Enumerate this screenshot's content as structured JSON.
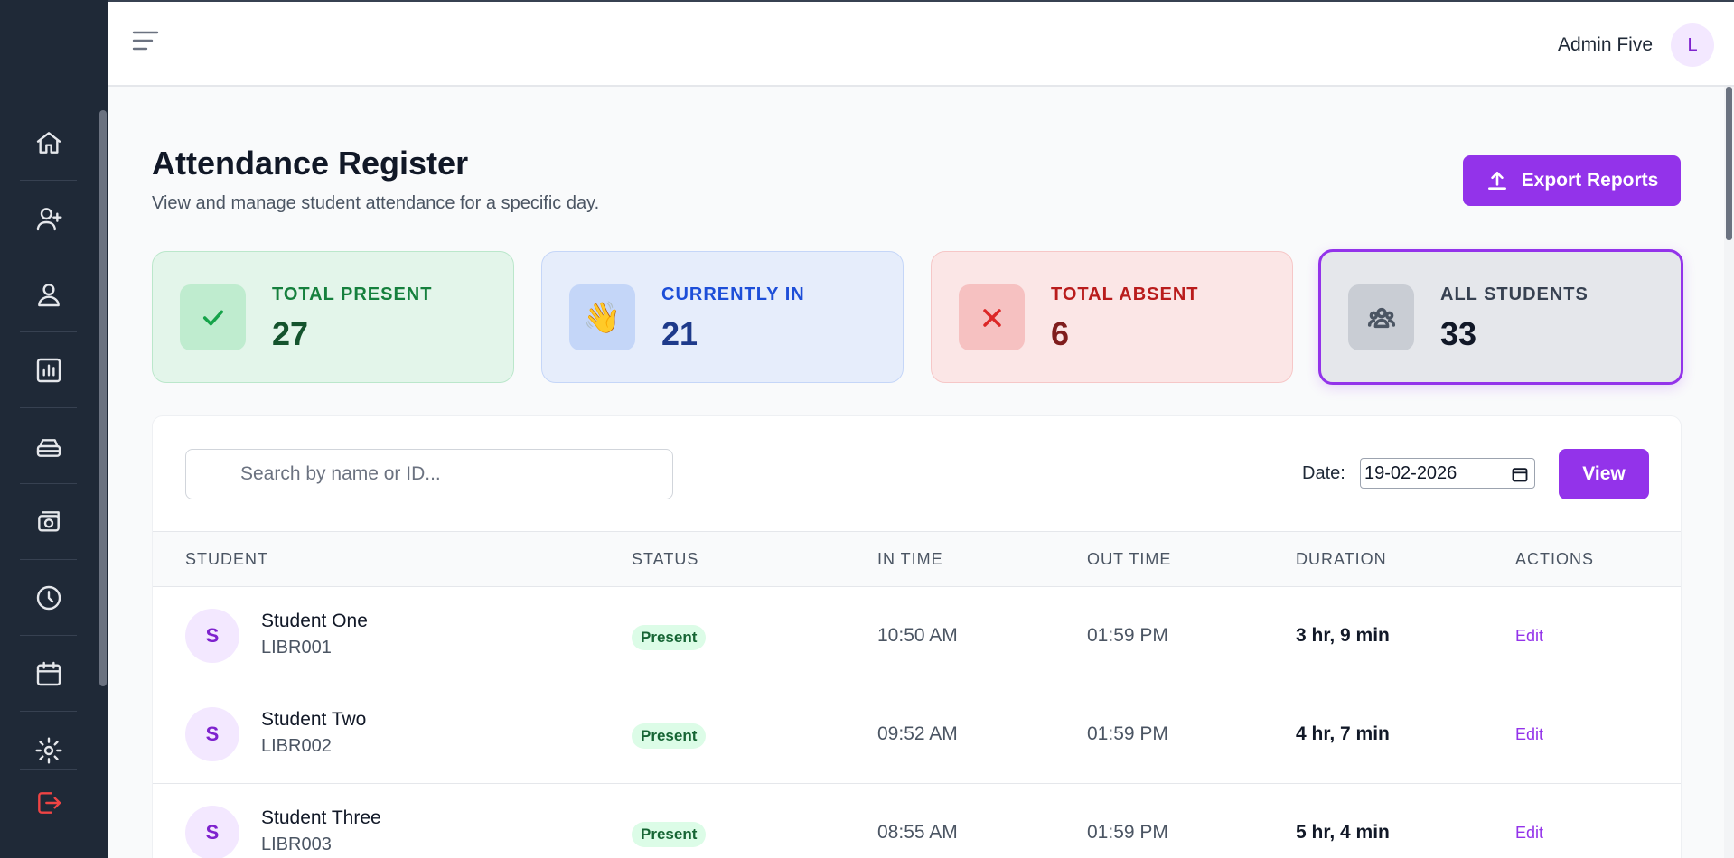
{
  "topbar": {
    "admin_name": "Admin Five",
    "avatar_initial": "L"
  },
  "sidebar": {
    "items": [
      {
        "name": "home-icon"
      },
      {
        "name": "add-user-icon"
      },
      {
        "name": "students-icon"
      },
      {
        "name": "reports-chart-icon"
      },
      {
        "name": "library-icon"
      },
      {
        "name": "payments-icon"
      },
      {
        "name": "clock-icon"
      },
      {
        "name": "calendar-icon"
      },
      {
        "name": "gear-icon"
      },
      {
        "name": "logout-icon"
      }
    ]
  },
  "header": {
    "title": "Attendance Register",
    "subtitle": "View and manage student attendance for a specific day.",
    "export_label": "Export Reports"
  },
  "stats": {
    "present": {
      "label": "TOTAL PRESENT",
      "value": "27"
    },
    "currently_in": {
      "label": "CURRENTLY IN",
      "value": "21",
      "emoji": "👋"
    },
    "absent": {
      "label": "TOTAL ABSENT",
      "value": "6"
    },
    "all": {
      "label": "ALL STUDENTS",
      "value": "33"
    }
  },
  "filters": {
    "search_placeholder": "Search by name or ID...",
    "date_label": "Date:",
    "date_value": "19-02-2026",
    "view_label": "View"
  },
  "table": {
    "columns": [
      "STUDENT",
      "STATUS",
      "IN TIME",
      "OUT TIME",
      "DURATION",
      "ACTIONS"
    ],
    "rows": [
      {
        "initial": "S",
        "name": "Student One",
        "id": "LIBR001",
        "status": "Present",
        "in": "10:50 AM",
        "out": "01:59 PM",
        "duration": "3 hr, 9 min",
        "action": "Edit"
      },
      {
        "initial": "S",
        "name": "Student Two",
        "id": "LIBR002",
        "status": "Present",
        "in": "09:52 AM",
        "out": "01:59 PM",
        "duration": "4 hr, 7 min",
        "action": "Edit"
      },
      {
        "initial": "S",
        "name": "Student Three",
        "id": "LIBR003",
        "status": "Present",
        "in": "08:55 AM",
        "out": "01:59 PM",
        "duration": "5 hr, 4 min",
        "action": "Edit"
      }
    ]
  },
  "colors": {
    "accent": "#9333ea",
    "sidebar": "#1f2937"
  }
}
